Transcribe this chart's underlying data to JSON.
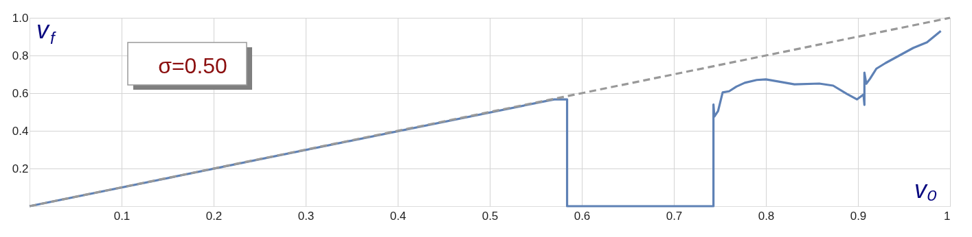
{
  "chart_data": {
    "type": "line",
    "xlabel": "v₀",
    "ylabel": "v$_{f}$",
    "annotations": [
      "σ=0.50"
    ],
    "xlim": [
      0,
      1
    ],
    "ylim": [
      0,
      1
    ],
    "xticks": [
      0.1,
      0.2,
      0.3,
      0.4,
      0.5,
      0.6,
      0.7,
      0.8,
      0.9,
      1
    ],
    "yticks": [
      0.2,
      0.4,
      0.6,
      0.8,
      {
        "value": 1.0,
        "label": "1.0"
      }
    ],
    "grid": true,
    "marker": "none",
    "series": [
      {
        "color": "#5e81b5",
        "line_style": "solid",
        "x": [
          0,
          0.57,
          0.584,
          0.584,
          0.743,
          0.743,
          0.744,
          0.748,
          0.753,
          0.76,
          0.768,
          0.777,
          0.79,
          0.8,
          0.813,
          0.831,
          0.858,
          0.873,
          0.888,
          0.899,
          0.906,
          0.907,
          0.907,
          0.909,
          0.913,
          0.92,
          0.93,
          0.945,
          0.96,
          0.975,
          0.99
        ],
        "values": [
          0,
          0.567,
          0.567,
          0,
          0,
          0.54,
          0.476,
          0.505,
          0.604,
          0.61,
          0.635,
          0.655,
          0.67,
          0.673,
          0.662,
          0.647,
          0.651,
          0.64,
          0.596,
          0.567,
          0.593,
          0.538,
          0.709,
          0.65,
          0.676,
          0.73,
          0.76,
          0.8,
          0.84,
          0.87,
          0.93
        ]
      },
      {
        "color": "#999999",
        "line_style": "dashed",
        "x": [
          0,
          1
        ],
        "values": [
          0,
          1
        ]
      }
    ]
  }
}
